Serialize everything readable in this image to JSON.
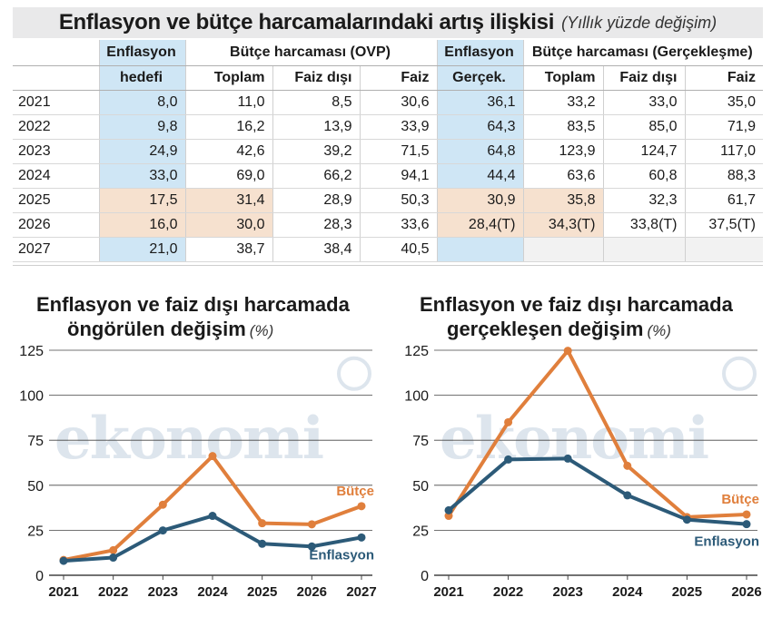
{
  "header": {
    "title": "Enflasyon ve bütçe harcamalarındaki artış ilişkisi",
    "subtitle": "(Yıllık yüzde değişim)"
  },
  "table": {
    "group_headers": {
      "inflation_target_1": "Enflasyon",
      "inflation_target_2": "hedefi",
      "budget_ovp": "Bütçe harcaması (OVP)",
      "inflation_actual_1": "Enflasyon",
      "inflation_actual_2": "Gerçek.",
      "budget_actual": "Bütçe harcaması (Gerçekleşme)"
    },
    "sub_headers": [
      "Toplam",
      "Faiz dışı",
      "Faiz",
      "Toplam",
      "Faiz dışı",
      "Faiz"
    ],
    "rows": [
      {
        "year": "2021",
        "cells": [
          "8,0",
          "11,0",
          "8,5",
          "30,6",
          "36,1",
          "33,2",
          "33,0",
          "35,0"
        ]
      },
      {
        "year": "2022",
        "cells": [
          "9,8",
          "16,2",
          "13,9",
          "33,9",
          "64,3",
          "83,5",
          "85,0",
          "71,9"
        ]
      },
      {
        "year": "2023",
        "cells": [
          "24,9",
          "42,6",
          "39,2",
          "71,5",
          "64,8",
          "123,9",
          "124,7",
          "117,0"
        ]
      },
      {
        "year": "2024",
        "cells": [
          "33,0",
          "69,0",
          "66,2",
          "94,1",
          "44,4",
          "63,6",
          "60,8",
          "88,3"
        ]
      },
      {
        "year": "2025",
        "cells": [
          "17,5",
          "31,4",
          "28,9",
          "50,3",
          "30,9",
          "35,8",
          "32,3",
          "61,7"
        ]
      },
      {
        "year": "2026",
        "cells": [
          "16,0",
          "30,0",
          "28,3",
          "33,6",
          "28,4(T)",
          "34,3(T)",
          "33,8(T)",
          "37,5(T)"
        ]
      },
      {
        "year": "2027",
        "cells": [
          "21,0",
          "38,7",
          "38,4",
          "40,5",
          "",
          "",
          "",
          ""
        ]
      }
    ]
  },
  "watermark": "ekonomi",
  "colors": {
    "budget": "#e07f3c",
    "inflation": "#2c5a78",
    "highlight_blue": "#cfe6f5",
    "highlight_peach": "#f6e1cf",
    "title_bar": "#e9e9ea",
    "grid": "#444444",
    "watermark": "#dde5ed"
  },
  "chart_data": [
    {
      "type": "line",
      "title_line1": "Enflasyon ve faiz dışı harcamada",
      "title_line2": "öngörülen değişim",
      "unit": "(%)",
      "x": [
        "2021",
        "2022",
        "2023",
        "2024",
        "2025",
        "2026",
        "2027"
      ],
      "yticks": [
        "125",
        "100",
        "75",
        "50",
        "25",
        "0"
      ],
      "ylim": [
        0,
        125
      ],
      "grid": true,
      "series": [
        {
          "name": "Bütçe",
          "color": "#e07f3c",
          "values": [
            8.5,
            13.9,
            39.2,
            66.2,
            28.9,
            28.3,
            38.4
          ]
        },
        {
          "name": "Enflasyon",
          "color": "#2c5a78",
          "values": [
            8.0,
            9.8,
            24.9,
            33.0,
            17.5,
            16.0,
            21.0
          ]
        }
      ]
    },
    {
      "type": "line",
      "title_line1": "Enflasyon ve faiz dışı harcamada",
      "title_line2": "gerçekleşen değişim",
      "unit": "(%)",
      "x": [
        "2021",
        "2022",
        "2023",
        "2024",
        "2025",
        "2026"
      ],
      "yticks": [
        "125",
        "100",
        "75",
        "50",
        "25",
        "0"
      ],
      "ylim": [
        0,
        125
      ],
      "grid": true,
      "series": [
        {
          "name": "Bütçe",
          "color": "#e07f3c",
          "values": [
            33.0,
            85.0,
            124.7,
            60.8,
            32.3,
            33.8
          ]
        },
        {
          "name": "Enflasyon",
          "color": "#2c5a78",
          "values": [
            36.1,
            64.3,
            64.8,
            44.4,
            30.9,
            28.4
          ]
        }
      ]
    }
  ]
}
